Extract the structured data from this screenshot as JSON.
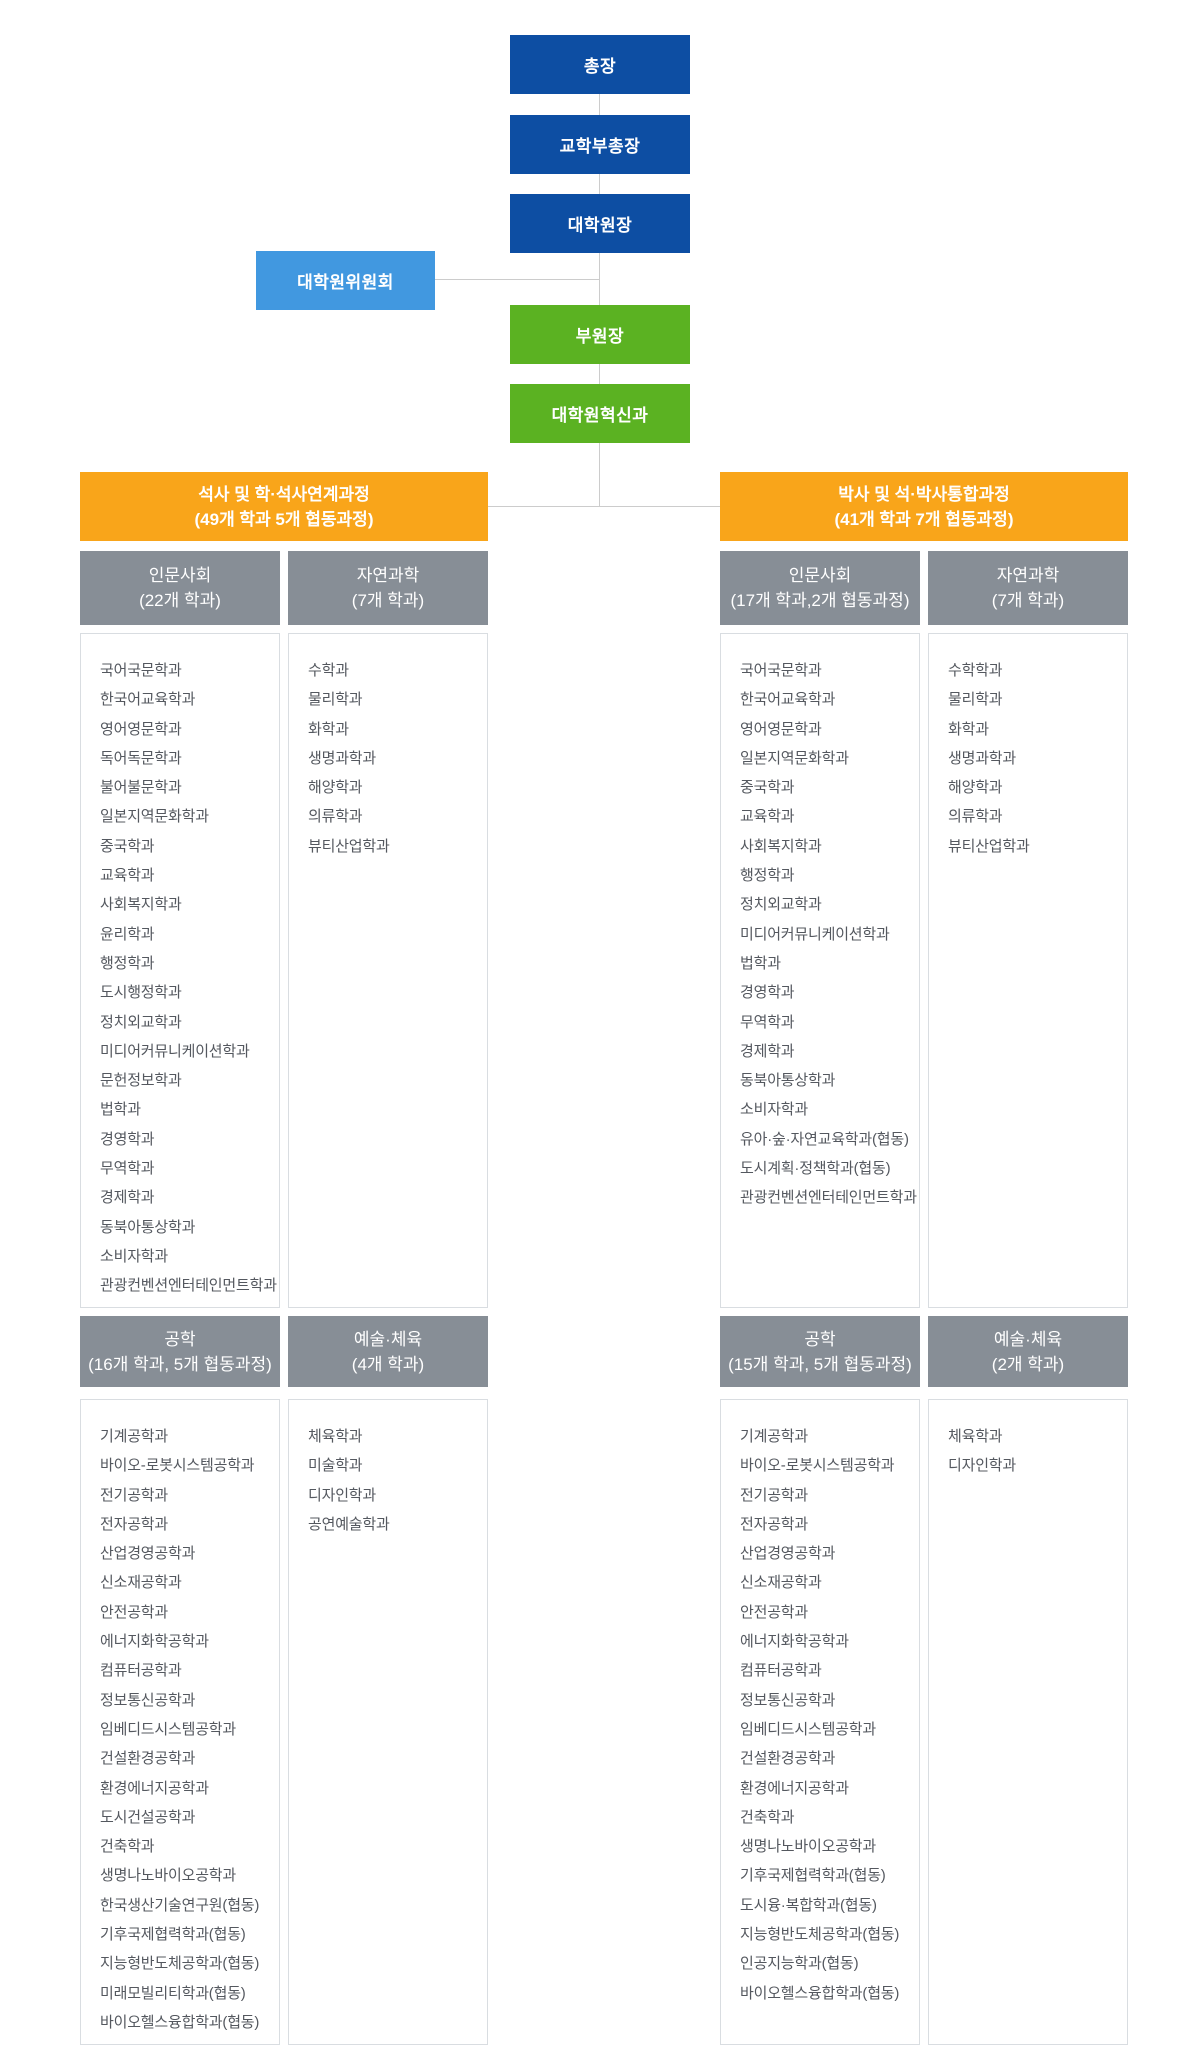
{
  "org": {
    "top_nodes": {
      "president": "총장",
      "vice_president": "교학부총장",
      "dean": "대학원장",
      "committee": "대학원위원회",
      "vice_dean": "부원장",
      "innovation": "대학원혁신과"
    },
    "colors": {
      "primary_blue": "#0d4ea3",
      "light_blue": "#4198e0",
      "green": "#5bb222",
      "orange": "#f9a51a",
      "gray_header": "#878e96",
      "connector": "#cccccc",
      "list_border": "#d9dde1",
      "list_text": "#54585f"
    },
    "sections": [
      {
        "title_line1": "석사 및 학·석사연계과정",
        "title_line2": "(49개 학과 5개 협동과정)",
        "groups": [
          {
            "title_line1": "인문사회",
            "title_line2": "(22개 학과)",
            "items": [
              "국어국문학과",
              "한국어교육학과",
              "영어영문학과",
              "독어독문학과",
              "불어불문학과",
              "일본지역문화학과",
              "중국학과",
              "교육학과",
              "사회복지학과",
              "윤리학과",
              "행정학과",
              "도시행정학과",
              "정치외교학과",
              "미디어커뮤니케이션학과",
              "문헌정보학과",
              "법학과",
              "경영학과",
              "무역학과",
              "경제학과",
              "동북아통상학과",
              "소비자학과",
              "관광컨벤션엔터테인먼트학과"
            ]
          },
          {
            "title_line1": "자연과학",
            "title_line2": "(7개 학과)",
            "items": [
              "수학과",
              "물리학과",
              "화학과",
              "생명과학과",
              "해양학과",
              "의류학과",
              "뷰티산업학과"
            ]
          },
          {
            "title_line1": "공학",
            "title_line2": "(16개 학과, 5개 협동과정)",
            "items": [
              "기계공학과",
              "바이오-로봇시스템공학과",
              "전기공학과",
              "전자공학과",
              "산업경영공학과",
              "신소재공학과",
              "안전공학과",
              "에너지화학공학과",
              "컴퓨터공학과",
              "정보통신공학과",
              "임베디드시스템공학과",
              "건설환경공학과",
              "환경에너지공학과",
              "도시건설공학과",
              "건축학과",
              "생명나노바이오공학과",
              "한국생산기술연구원(협동)",
              "기후국제협력학과(협동)",
              "지능형반도체공학과(협동)",
              "미래모빌리티학과(협동)",
              "바이오헬스융합학과(협동)"
            ]
          },
          {
            "title_line1": "예술·체육",
            "title_line2": "(4개 학과)",
            "items": [
              "체육학과",
              "미술학과",
              "디자인학과",
              "공연예술학과"
            ]
          }
        ]
      },
      {
        "title_line1": "박사 및 석·박사통합과정",
        "title_line2": "(41개 학과 7개 협동과정)",
        "groups": [
          {
            "title_line1": "인문사회",
            "title_line2": "(17개 학과,2개 협동과정)",
            "items": [
              "국어국문학과",
              "한국어교육학과",
              "영어영문학과",
              "일본지역문화학과",
              "중국학과",
              "교육학과",
              "사회복지학과",
              "행정학과",
              "정치외교학과",
              "미디어커뮤니케이션학과",
              "법학과",
              "경영학과",
              "무역학과",
              "경제학과",
              "동북아통상학과",
              "소비자학과",
              "유아·숲·자연교육학과(협동)",
              "도시계획·정책학과(협동)",
              "관광컨벤션엔터테인먼트학과"
            ]
          },
          {
            "title_line1": "자연과학",
            "title_line2": "(7개 학과)",
            "items": [
              "수학학과",
              "물리학과",
              "화학과",
              "생명과학과",
              "해양학과",
              "의류학과",
              "뷰티산업학과"
            ]
          },
          {
            "title_line1": "공학",
            "title_line2": "(15개 학과, 5개 협동과정)",
            "items": [
              "기계공학과",
              "바이오-로봇시스템공학과",
              "전기공학과",
              "전자공학과",
              "산업경영공학과",
              "신소재공학과",
              "안전공학과",
              "에너지화학공학과",
              "컴퓨터공학과",
              "정보통신공학과",
              "임베디드시스템공학과",
              "건설환경공학과",
              "환경에너지공학과",
              "건축학과",
              "생명나노바이오공학과",
              "기후국제협력학과(협동)",
              "도시융·복합학과(협동)",
              "지능형반도체공학과(협동)",
              "인공지능학과(협동)",
              "바이오헬스융합학과(협동)"
            ]
          },
          {
            "title_line1": "예술·체육",
            "title_line2": "(2개 학과)",
            "items": [
              "체육학과",
              "디자인학과"
            ]
          }
        ]
      }
    ]
  }
}
